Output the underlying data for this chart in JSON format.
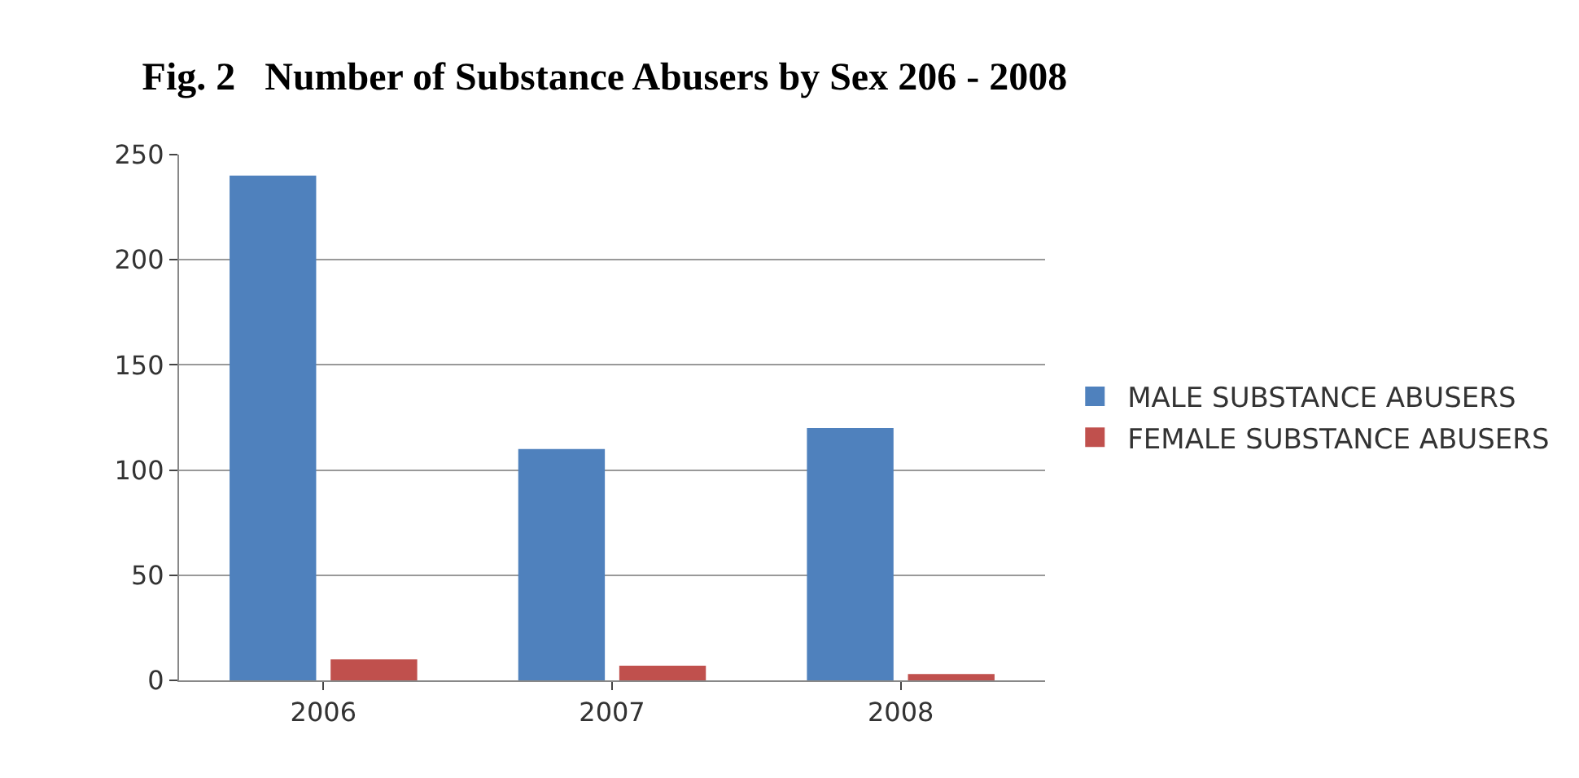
{
  "chart_data": {
    "type": "bar",
    "title": "Fig. 2   Number of Substance Abusers by Sex 206 - 2008",
    "categories": [
      "2006",
      "2007",
      "2008"
    ],
    "series": [
      {
        "name": "MALE SUBSTANCE ABUSERS",
        "color": "#4f81bd",
        "values": [
          240,
          110,
          120
        ]
      },
      {
        "name": "FEMALE SUBSTANCE ABUSERS",
        "color": "#c0504d",
        "values": [
          10,
          7,
          3
        ]
      }
    ],
    "ylim": [
      0,
      250
    ],
    "yticks": [
      0,
      50,
      100,
      150,
      200,
      250
    ],
    "grid": "y",
    "legend": "right"
  }
}
